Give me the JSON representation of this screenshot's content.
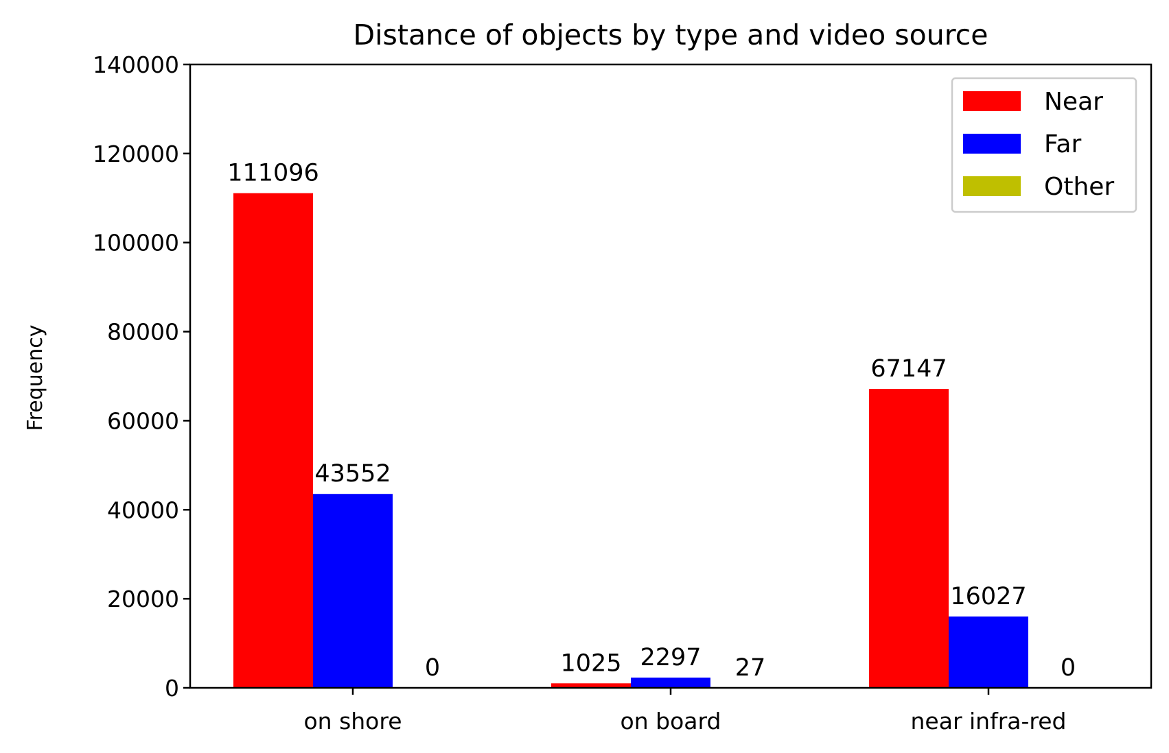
{
  "chart_data": {
    "type": "bar",
    "title": "Distance of objects by type and video source",
    "xlabel": "",
    "ylabel": "Frequency",
    "categories": [
      "on shore",
      "on board",
      "near infra-red"
    ],
    "series": [
      {
        "name": "Near",
        "color": "#ff0000",
        "values": [
          111096,
          1025,
          67147
        ]
      },
      {
        "name": "Far",
        "color": "#0000ff",
        "values": [
          43552,
          2297,
          16027
        ]
      },
      {
        "name": "Other",
        "color": "#bfbf00",
        "values": [
          0,
          27,
          0
        ]
      }
    ],
    "ylim": [
      0,
      140000
    ],
    "yticks": [
      "0",
      "20000",
      "40000",
      "60000",
      "80000",
      "100000",
      "120000",
      "140000"
    ],
    "grid": false,
    "legend_position": "top-right",
    "data_labels": [
      [
        "111096",
        "1025",
        "67147"
      ],
      [
        "43552",
        "2297",
        "16027"
      ],
      [
        "0",
        "27",
        "0"
      ]
    ]
  }
}
